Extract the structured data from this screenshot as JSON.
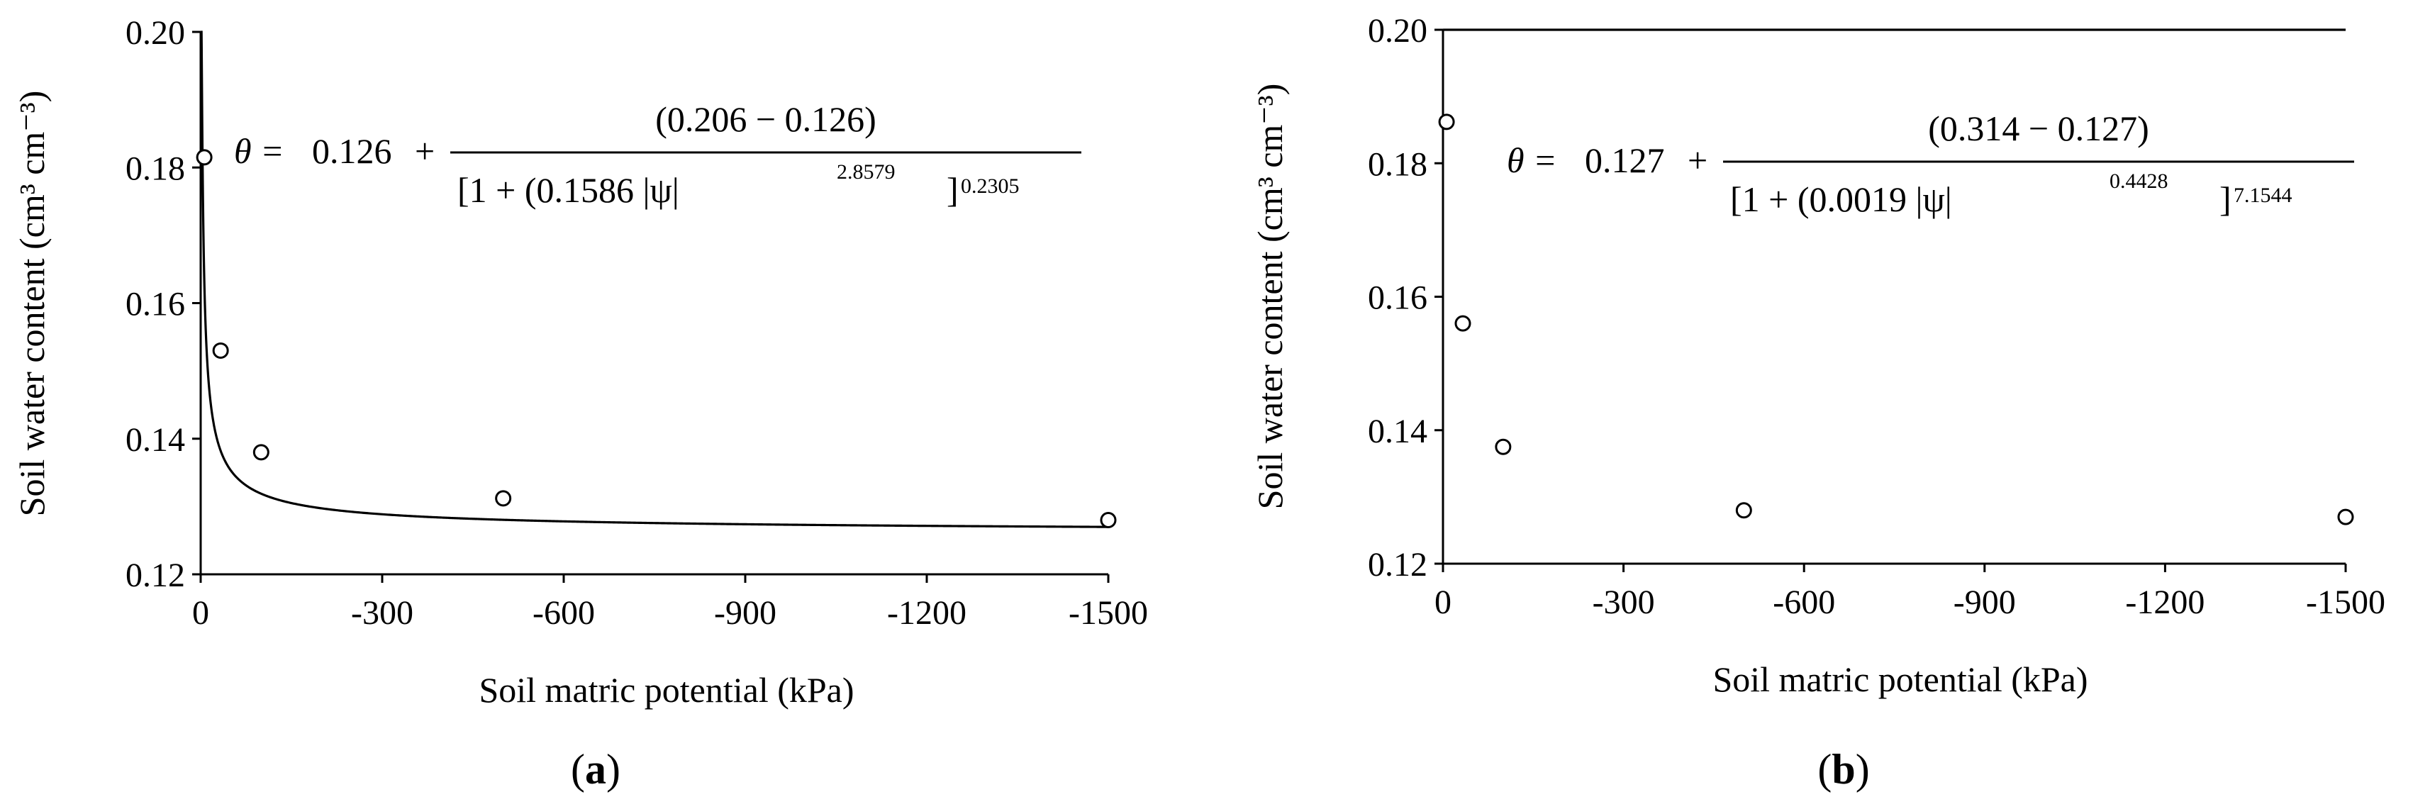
{
  "chart_data": [
    {
      "type": "scatter",
      "panel_label": "(a)",
      "panel_letter": "a",
      "xlabel": "Soil matric potential (kPa)",
      "ylabel": "Soil water content (cm³ cm⁻³)",
      "xlim": [
        0,
        -1500
      ],
      "ylim": [
        0.12,
        0.2
      ],
      "x_ticks": [
        "0",
        "-300",
        "-600",
        "-900",
        "-1200",
        "-1500"
      ],
      "y_ticks": [
        "0.12",
        "0.14",
        "0.16",
        "0.18",
        "0.20"
      ],
      "points": [
        {
          "x": -6,
          "y": 0.1815
        },
        {
          "x": -33,
          "y": 0.153
        },
        {
          "x": -100,
          "y": 0.138
        },
        {
          "x": -500,
          "y": 0.1312
        },
        {
          "x": -1500,
          "y": 0.128
        }
      ],
      "fit": {
        "theta_r": 0.126,
        "theta_s": 0.206,
        "alpha": 0.1586,
        "n": 2.8579,
        "m": 0.2305
      },
      "equation": {
        "lhs": "θ = ",
        "theta_r": "0.126",
        "plus": "+",
        "numerator": "(0.206 − 0.126)",
        "denominator": "[1 + (0.1586 |ψ|",
        "n_exp": "2.8579",
        "bracket_close": "]",
        "m_exp": "0.2305"
      },
      "grid": false,
      "legend": "none"
    },
    {
      "type": "scatter",
      "panel_label": "(b)",
      "panel_letter": "b",
      "xlabel": "Soil matric potential (kPa)",
      "ylabel": "Soil water content (cm³ cm⁻³)",
      "xlim": [
        0,
        -1500
      ],
      "ylim": [
        0.12,
        0.2
      ],
      "x_ticks": [
        "0",
        "-300",
        "-600",
        "-900",
        "-1200",
        "-1500"
      ],
      "y_ticks": [
        "0.12",
        "0.14",
        "0.16",
        "0.18",
        "0.20"
      ],
      "points": [
        {
          "x": -6,
          "y": 0.1862
        },
        {
          "x": -33,
          "y": 0.156
        },
        {
          "x": -100,
          "y": 0.1375
        },
        {
          "x": -500,
          "y": 0.128
        },
        {
          "x": -1500,
          "y": 0.127
        }
      ],
      "fit": {
        "theta_r": 0.127,
        "theta_s": 0.314,
        "alpha": 0.0019,
        "n": 0.4428,
        "m": 7.1544
      },
      "equation": {
        "lhs": "θ = ",
        "theta_r": "0.127",
        "plus": "+",
        "numerator": "(0.314 − 0.127)",
        "denominator": "[1 + (0.0019 |ψ|",
        "n_exp": "0.4428",
        "bracket_close": "]",
        "m_exp": "7.1544"
      },
      "grid": false,
      "legend": "none"
    }
  ]
}
